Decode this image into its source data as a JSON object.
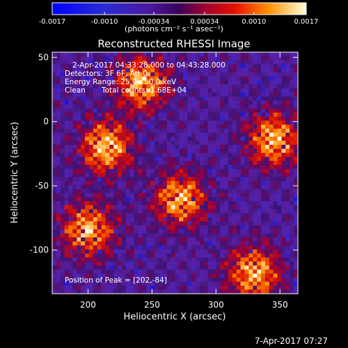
{
  "chart_data": {
    "type": "heatmap",
    "title": "Reconstructed RHESSI Image",
    "xlabel": "Heliocentric X (arcsec)",
    "ylabel": "Heliocentric Y (arcsec)",
    "xlim": [
      172,
      364
    ],
    "ylim": [
      -134,
      54
    ],
    "x_ticks": [
      200,
      250,
      300,
      350
    ],
    "y_ticks": [
      50,
      0,
      -50,
      -100
    ],
    "colorbar": {
      "ticks": [
        -0.0017,
        -0.001,
        -0.00034,
        0.00034,
        0.001,
        0.0017
      ],
      "tick_labels": [
        "-0.0017",
        "-0.0010",
        "-0.00034",
        "0.00034",
        "0.0010",
        "0.0017"
      ],
      "range": [
        -0.0017,
        0.0017
      ],
      "units": "(photons cm⁻² s⁻¹ asec⁻²)"
    },
    "annotations": {
      "time": "2-Apr-2017 04:33:28.000 to 04:43:28.000",
      "detectors": "Detectors: 3F 6F, Att 0",
      "energy": "Energy Range: 25.0 - 50.0 keV",
      "method": "Clean",
      "counts": "Total counts: 1.68E+04",
      "peak": "Position of Peak = [202,-84]"
    },
    "bright_sources": [
      {
        "x": 242,
        "y": 30
      },
      {
        "x": 345,
        "y": -14
      },
      {
        "x": 272,
        "y": -60
      },
      {
        "x": 214,
        "y": -20
      },
      {
        "x": 200,
        "y": -84
      },
      {
        "x": 330,
        "y": -118
      }
    ],
    "grid": false
  },
  "footer": {
    "date": "7-Apr-2017 07:27"
  },
  "colors": {
    "background": "#000000",
    "text": "#ffffff"
  }
}
